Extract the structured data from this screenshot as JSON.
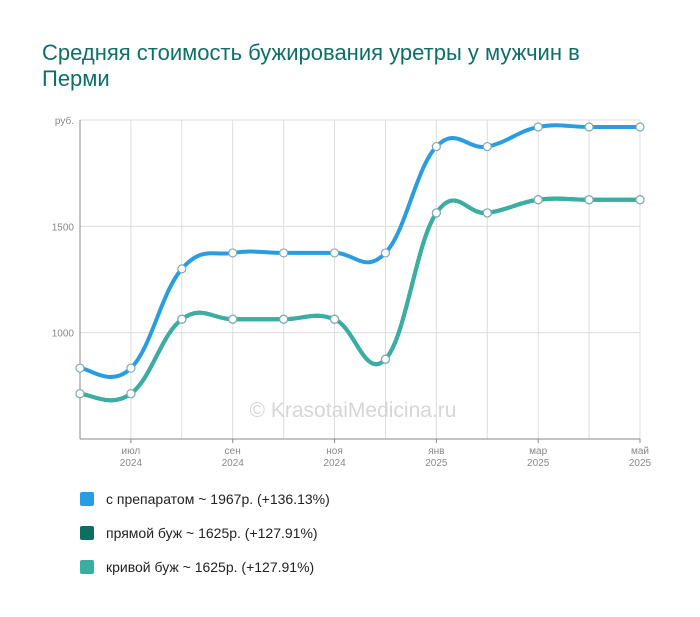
{
  "title": "Средняя стоимость бужирования уретры у мужчин в Перми",
  "watermark": "© KrasotaiMedicina.ru",
  "chart_data": {
    "type": "line",
    "ylabel": "руб.",
    "ylim": [
      500,
      2000
    ],
    "yticks": [
      1000,
      1500
    ],
    "x_tick_labels": [
      {
        "month": "июл",
        "year": "2024"
      },
      {
        "month": "сен",
        "year": "2024"
      },
      {
        "month": "ноя",
        "year": "2024"
      },
      {
        "month": "янв",
        "year": "2025"
      },
      {
        "month": "мар",
        "year": "2025"
      },
      {
        "month": "май",
        "year": "2025"
      }
    ],
    "series": [
      {
        "name": "с препаратом",
        "color": "#2a9de0",
        "values": [
          833,
          833,
          1300,
          1375,
          1375,
          1375,
          1375,
          1875,
          1875,
          1967,
          1967,
          1967
        ]
      },
      {
        "name": "прямой буж",
        "color": "#0f6d64",
        "values": [
          713,
          713,
          1063,
          1063,
          1063,
          1063,
          875,
          1563,
          1563,
          1625,
          1625,
          1625
        ]
      },
      {
        "name": "кривой буж",
        "color": "#3aaea3",
        "values": [
          713,
          713,
          1063,
          1063,
          1063,
          1063,
          875,
          1563,
          1563,
          1625,
          1625,
          1625
        ]
      }
    ]
  },
  "legend": [
    {
      "label": "с препаратом ~ 1967р. (+136.13%)",
      "color": "#2a9de0"
    },
    {
      "label": "прямой буж ~ 1625р. (+127.91%)",
      "color": "#0f6d64"
    },
    {
      "label": "кривой буж ~ 1625р. (+127.91%)",
      "color": "#3aaea3"
    }
  ]
}
